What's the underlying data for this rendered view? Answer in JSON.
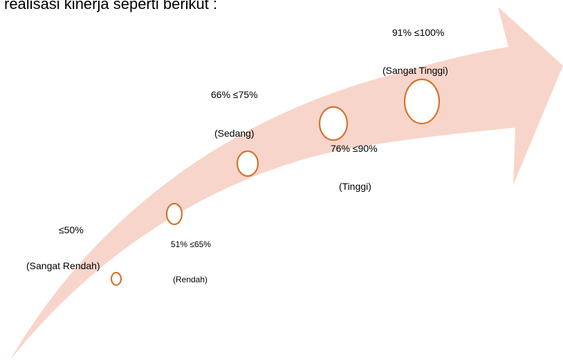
{
  "header": {
    "text": "realisasi kinerja seperti berikut :"
  },
  "levels": [
    {
      "range": "≤50%",
      "label": "(Sangat Rendah)"
    },
    {
      "range": "51% ≤65%",
      "label": "(Rendah)"
    },
    {
      "range": "66% ≤75%",
      "label": "(Sedang)"
    },
    {
      "range": "76% ≤90%",
      "label": "(Tinggi)"
    },
    {
      "range": "91% ≤100%",
      "label": "(Sangat Tinggi)"
    }
  ]
}
